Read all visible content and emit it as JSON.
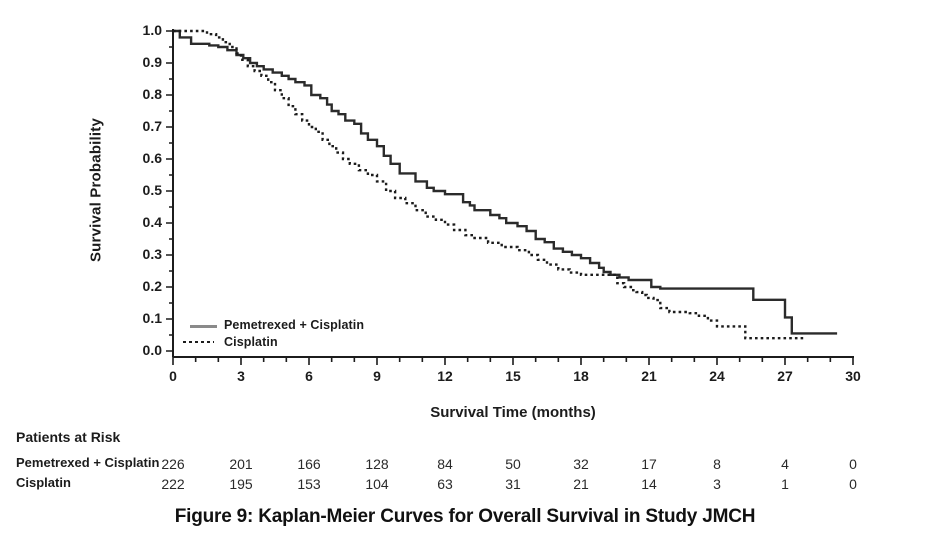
{
  "figure": {
    "title": "Figure 9: Kaplan-Meier Curves for Overall Survival in Study JMCH"
  },
  "chart_data": {
    "type": "line",
    "subtype": "kaplan-meier-step",
    "xlabel": "Survival Time (months)",
    "ylabel": "Survival Probability",
    "xlim": [
      0,
      30
    ],
    "ylim": [
      0.0,
      1.0
    ],
    "x_major_ticks": [
      0,
      3,
      6,
      9,
      12,
      15,
      18,
      21,
      24,
      27,
      30
    ],
    "x_minor_tick_step": 1,
    "y_major_ticks": [
      1.0,
      0.9,
      0.8,
      0.7,
      0.6,
      0.5,
      0.4,
      0.3,
      0.2,
      0.1,
      0.0
    ],
    "y_tick_labels": [
      "1.0",
      "0.9",
      "0.8",
      "0.7",
      "0.6",
      "0.5",
      "0.4",
      "0.3",
      "0.2",
      "0.1",
      "0.0"
    ],
    "y_minor_tick_step": 0.05,
    "grid": false,
    "legend_position": "inside-bottom-left",
    "series": [
      {
        "name": "Pemetrexed + Cisplatin",
        "style": "solid",
        "color": "#2b2b2b",
        "points": [
          [
            0,
            1.0
          ],
          [
            0.3,
            0.98
          ],
          [
            0.8,
            0.96
          ],
          [
            1.6,
            0.955
          ],
          [
            2.0,
            0.95
          ],
          [
            2.4,
            0.94
          ],
          [
            2.8,
            0.925
          ],
          [
            3.1,
            0.915
          ],
          [
            3.4,
            0.9
          ],
          [
            3.7,
            0.89
          ],
          [
            4.0,
            0.88
          ],
          [
            4.4,
            0.87
          ],
          [
            4.8,
            0.86
          ],
          [
            5.1,
            0.85
          ],
          [
            5.4,
            0.84
          ],
          [
            5.8,
            0.83
          ],
          [
            6.1,
            0.8
          ],
          [
            6.5,
            0.79
          ],
          [
            6.8,
            0.77
          ],
          [
            7.0,
            0.75
          ],
          [
            7.3,
            0.74
          ],
          [
            7.6,
            0.72
          ],
          [
            8.0,
            0.71
          ],
          [
            8.3,
            0.68
          ],
          [
            8.6,
            0.66
          ],
          [
            9.0,
            0.64
          ],
          [
            9.3,
            0.61
          ],
          [
            9.6,
            0.585
          ],
          [
            10.0,
            0.555
          ],
          [
            10.7,
            0.53
          ],
          [
            11.2,
            0.51
          ],
          [
            11.5,
            0.5
          ],
          [
            12.0,
            0.49
          ],
          [
            12.8,
            0.465
          ],
          [
            13.1,
            0.455
          ],
          [
            13.3,
            0.44
          ],
          [
            14.0,
            0.425
          ],
          [
            14.4,
            0.415
          ],
          [
            14.7,
            0.4
          ],
          [
            15.2,
            0.39
          ],
          [
            15.6,
            0.375
          ],
          [
            16.0,
            0.35
          ],
          [
            16.4,
            0.34
          ],
          [
            16.8,
            0.32
          ],
          [
            17.2,
            0.31
          ],
          [
            17.6,
            0.3
          ],
          [
            18.0,
            0.29
          ],
          [
            18.4,
            0.275
          ],
          [
            18.8,
            0.26
          ],
          [
            19.0,
            0.247
          ],
          [
            19.3,
            0.238
          ],
          [
            19.7,
            0.23
          ],
          [
            20.1,
            0.222
          ],
          [
            21.1,
            0.2
          ],
          [
            21.5,
            0.195
          ],
          [
            25.6,
            0.16
          ],
          [
            27.0,
            0.105
          ],
          [
            27.3,
            0.055
          ],
          [
            29.3,
            0.055
          ]
        ]
      },
      {
        "name": "Cisplatin",
        "style": "dotted",
        "color": "#1c1c1c",
        "points": [
          [
            0,
            1.0
          ],
          [
            1.5,
            0.99
          ],
          [
            1.9,
            0.98
          ],
          [
            2.2,
            0.965
          ],
          [
            2.5,
            0.95
          ],
          [
            2.8,
            0.93
          ],
          [
            3.0,
            0.91
          ],
          [
            3.3,
            0.89
          ],
          [
            3.6,
            0.875
          ],
          [
            3.9,
            0.86
          ],
          [
            4.2,
            0.84
          ],
          [
            4.5,
            0.815
          ],
          [
            4.8,
            0.79
          ],
          [
            5.1,
            0.765
          ],
          [
            5.4,
            0.74
          ],
          [
            5.7,
            0.72
          ],
          [
            6.0,
            0.7
          ],
          [
            6.3,
            0.685
          ],
          [
            6.6,
            0.66
          ],
          [
            6.9,
            0.64
          ],
          [
            7.2,
            0.62
          ],
          [
            7.5,
            0.6
          ],
          [
            7.8,
            0.585
          ],
          [
            8.2,
            0.565
          ],
          [
            8.6,
            0.55
          ],
          [
            9.0,
            0.53
          ],
          [
            9.4,
            0.5
          ],
          [
            9.8,
            0.478
          ],
          [
            10.25,
            0.462
          ],
          [
            10.7,
            0.44
          ],
          [
            11.15,
            0.42
          ],
          [
            11.6,
            0.41
          ],
          [
            12.0,
            0.395
          ],
          [
            12.4,
            0.378
          ],
          [
            12.9,
            0.362
          ],
          [
            13.3,
            0.353
          ],
          [
            13.9,
            0.338
          ],
          [
            14.5,
            0.325
          ],
          [
            15.2,
            0.315
          ],
          [
            15.7,
            0.3
          ],
          [
            16.1,
            0.285
          ],
          [
            16.5,
            0.27
          ],
          [
            17.0,
            0.255
          ],
          [
            17.5,
            0.245
          ],
          [
            18.0,
            0.238
          ],
          [
            19.6,
            0.212
          ],
          [
            19.9,
            0.2
          ],
          [
            20.2,
            0.19
          ],
          [
            20.45,
            0.184
          ],
          [
            20.7,
            0.175
          ],
          [
            20.9,
            0.166
          ],
          [
            21.2,
            0.159
          ],
          [
            21.5,
            0.134
          ],
          [
            21.9,
            0.122
          ],
          [
            22.8,
            0.118
          ],
          [
            23.2,
            0.11
          ],
          [
            23.6,
            0.095
          ],
          [
            24.0,
            0.077
          ],
          [
            25.25,
            0.04
          ],
          [
            27.9,
            0.04
          ]
        ]
      }
    ]
  },
  "risk_table": {
    "heading": "Patients at Risk",
    "time_points": [
      0,
      3,
      6,
      9,
      12,
      15,
      18,
      21,
      24,
      27,
      30
    ],
    "rows": [
      {
        "label": "Pemetrexed + Cisplatin",
        "values": [
          226,
          201,
          166,
          128,
          84,
          50,
          32,
          17,
          8,
          4,
          0
        ]
      },
      {
        "label": "Cisplatin",
        "values": [
          222,
          195,
          153,
          104,
          63,
          31,
          21,
          14,
          3,
          1,
          0
        ]
      }
    ]
  },
  "colors": {
    "ink": "#1c1c1c",
    "solid_curve": "#2b2b2b",
    "dotted_curve": "#1c1c1c",
    "legend_solid_sample": "#8a8a8a",
    "background": "#ffffff"
  }
}
